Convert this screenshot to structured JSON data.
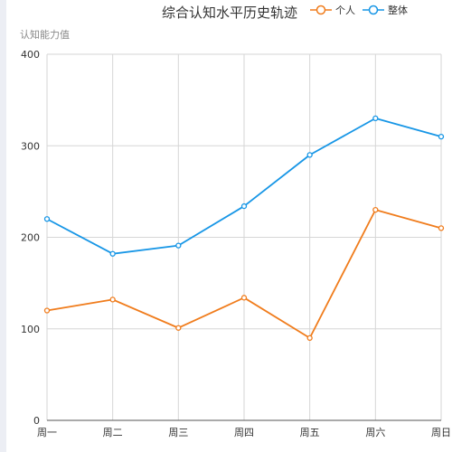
{
  "chart_data": {
    "type": "line",
    "title": "综合认知水平历史轨迹",
    "ylabel": "认知能力值",
    "categories": [
      "周一",
      "周二",
      "周三",
      "周四",
      "周五",
      "周六",
      "周日"
    ],
    "ylim": [
      0,
      400
    ],
    "yticks": [
      0,
      100,
      200,
      300,
      400
    ],
    "grid": true,
    "legend_position": "top-right",
    "series": [
      {
        "name": "个人",
        "color": "#f07c1c",
        "values": [
          120,
          132,
          101,
          134,
          90,
          230,
          210
        ]
      },
      {
        "name": "整体",
        "color": "#1796e6",
        "values": [
          220,
          182,
          191,
          234,
          290,
          330,
          310
        ]
      }
    ]
  }
}
